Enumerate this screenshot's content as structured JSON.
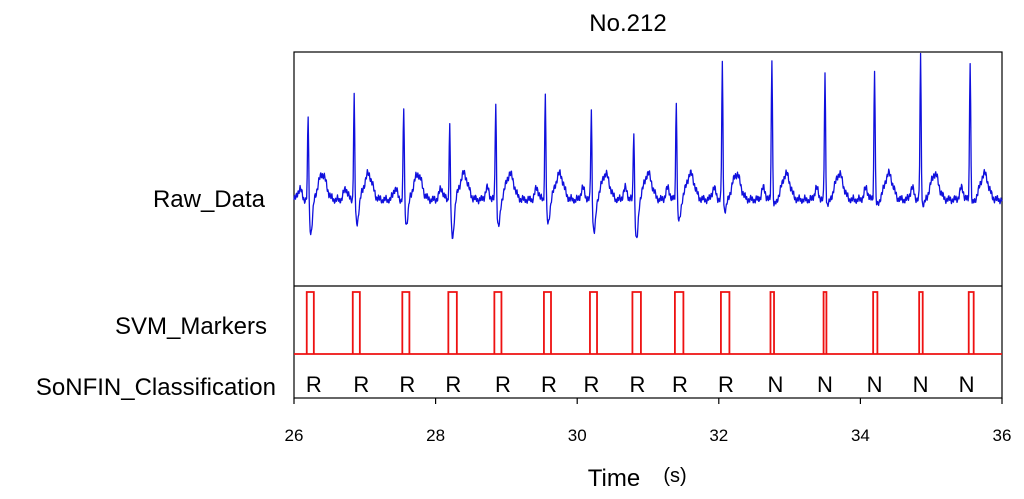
{
  "chart_data": {
    "type": "line",
    "title": "No.212",
    "xlabel": "Time",
    "xunit": "(s)",
    "xlim": [
      26,
      36
    ],
    "xticks": [
      26,
      28,
      30,
      32,
      34,
      36
    ],
    "xtick_labels": [
      "26",
      "28",
      "30",
      "32",
      "34",
      "36"
    ],
    "row_labels": {
      "raw": "Raw_Data",
      "svm": "SVM_Markers",
      "classification": "SoNFIN_Classification"
    },
    "colors": {
      "raw": "#1010dd",
      "svm": "#ee1111",
      "axes": "#000000"
    },
    "raw_data": {
      "beat_times": [
        26.2,
        26.85,
        27.55,
        28.2,
        28.85,
        29.55,
        30.2,
        30.8,
        31.4,
        32.05,
        32.75,
        33.5,
        34.2,
        34.85,
        35.55
      ],
      "peak_heights": [
        0.62,
        0.75,
        0.67,
        0.57,
        0.72,
        0.77,
        0.67,
        0.55,
        0.72,
        0.95,
        1.0,
        0.88,
        0.92,
        1.0,
        0.98
      ],
      "dip_depths": [
        0.3,
        0.22,
        0.22,
        0.35,
        0.25,
        0.22,
        0.3,
        0.37,
        0.2,
        0.1,
        0.05,
        0.05,
        0.05,
        0.05,
        0.03
      ]
    },
    "svm_markers": [
      {
        "start": 26.18,
        "end": 26.28
      },
      {
        "start": 26.83,
        "end": 26.93
      },
      {
        "start": 27.53,
        "end": 27.63
      },
      {
        "start": 28.18,
        "end": 28.3
      },
      {
        "start": 28.83,
        "end": 28.93
      },
      {
        "start": 29.53,
        "end": 29.63
      },
      {
        "start": 30.18,
        "end": 30.28
      },
      {
        "start": 30.78,
        "end": 30.9
      },
      {
        "start": 31.38,
        "end": 31.5
      },
      {
        "start": 32.03,
        "end": 32.15
      },
      {
        "start": 32.73,
        "end": 32.78
      },
      {
        "start": 33.48,
        "end": 33.52
      },
      {
        "start": 34.18,
        "end": 34.24
      },
      {
        "start": 34.83,
        "end": 34.88
      },
      {
        "start": 35.53,
        "end": 35.6
      }
    ],
    "classification": [
      {
        "x": 26.28,
        "label": "R"
      },
      {
        "x": 26.95,
        "label": "R"
      },
      {
        "x": 27.6,
        "label": "R"
      },
      {
        "x": 28.25,
        "label": "R"
      },
      {
        "x": 28.95,
        "label": "R"
      },
      {
        "x": 29.6,
        "label": "R"
      },
      {
        "x": 30.2,
        "label": "R"
      },
      {
        "x": 30.85,
        "label": "R"
      },
      {
        "x": 31.45,
        "label": "R"
      },
      {
        "x": 32.1,
        "label": "R"
      },
      {
        "x": 32.8,
        "label": "N"
      },
      {
        "x": 33.5,
        "label": "N"
      },
      {
        "x": 34.2,
        "label": "N"
      },
      {
        "x": 34.85,
        "label": "N"
      },
      {
        "x": 35.5,
        "label": "N"
      }
    ]
  }
}
